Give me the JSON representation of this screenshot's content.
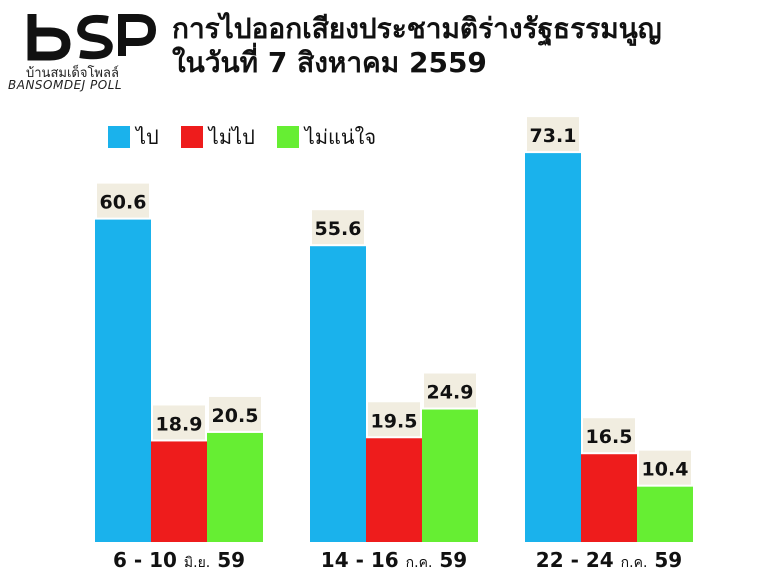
{
  "logo": {
    "mark": "bSP",
    "thai": "บ้านสมเด็จโพลล์",
    "english": "BANSOMDEJ POLL"
  },
  "title": {
    "line1": "การไปออกเสียงประชามติร่างรัฐธรรมนูญ",
    "line2": "ในวันที่ 7 สิงหาคม 2559"
  },
  "colors": {
    "go": "#1ab2ec",
    "not_go": "#ee1c1c",
    "unsure": "#66ee33",
    "label_bg": "#f1ede0"
  },
  "chart_data": {
    "type": "bar",
    "categories": [
      "6 - 10 มิ.ย. 59",
      "14 - 16 ก.ค. 59",
      "22 - 24 ก.ค. 59"
    ],
    "category_parts": [
      {
        "date": "6 - 10",
        "month": "มิ.ย.",
        "year": "59"
      },
      {
        "date": "14 - 16",
        "month": "ก.ค.",
        "year": "59"
      },
      {
        "date": "22 - 24",
        "month": "ก.ค.",
        "year": "59"
      }
    ],
    "series": [
      {
        "name": "ไป",
        "values": [
          60.6,
          55.6,
          73.1
        ]
      },
      {
        "name": "ไม่ไป",
        "values": [
          18.9,
          19.5,
          16.5
        ]
      },
      {
        "name": "ไม่แน่ใจ",
        "values": [
          20.5,
          24.9,
          10.4
        ]
      }
    ],
    "title": "การไปออกเสียงประชามติร่างรัฐธรรมนูญ ในวันที่ 7 สิงหาคม 2559",
    "xlabel": "",
    "ylabel": "",
    "ylim": [
      0,
      80
    ],
    "grid": false,
    "legend": "top-left"
  }
}
